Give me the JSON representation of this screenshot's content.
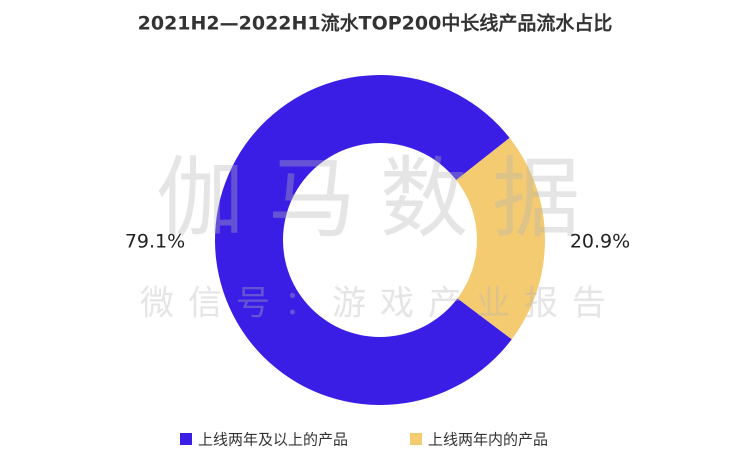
{
  "chart_data": {
    "type": "pie",
    "title": "2021H2—2022H1流水TOP200中长线产品流水占比",
    "categories": [
      "上线两年及以上的产品",
      "上线两年内的产品"
    ],
    "values": [
      79.1,
      20.9
    ],
    "value_labels": [
      "79.1%",
      "20.9%"
    ],
    "colors": [
      "#3b1ee6",
      "#f5cb72"
    ],
    "watermark": [
      "伽马数据",
      "微信号：游戏产业报告"
    ]
  }
}
